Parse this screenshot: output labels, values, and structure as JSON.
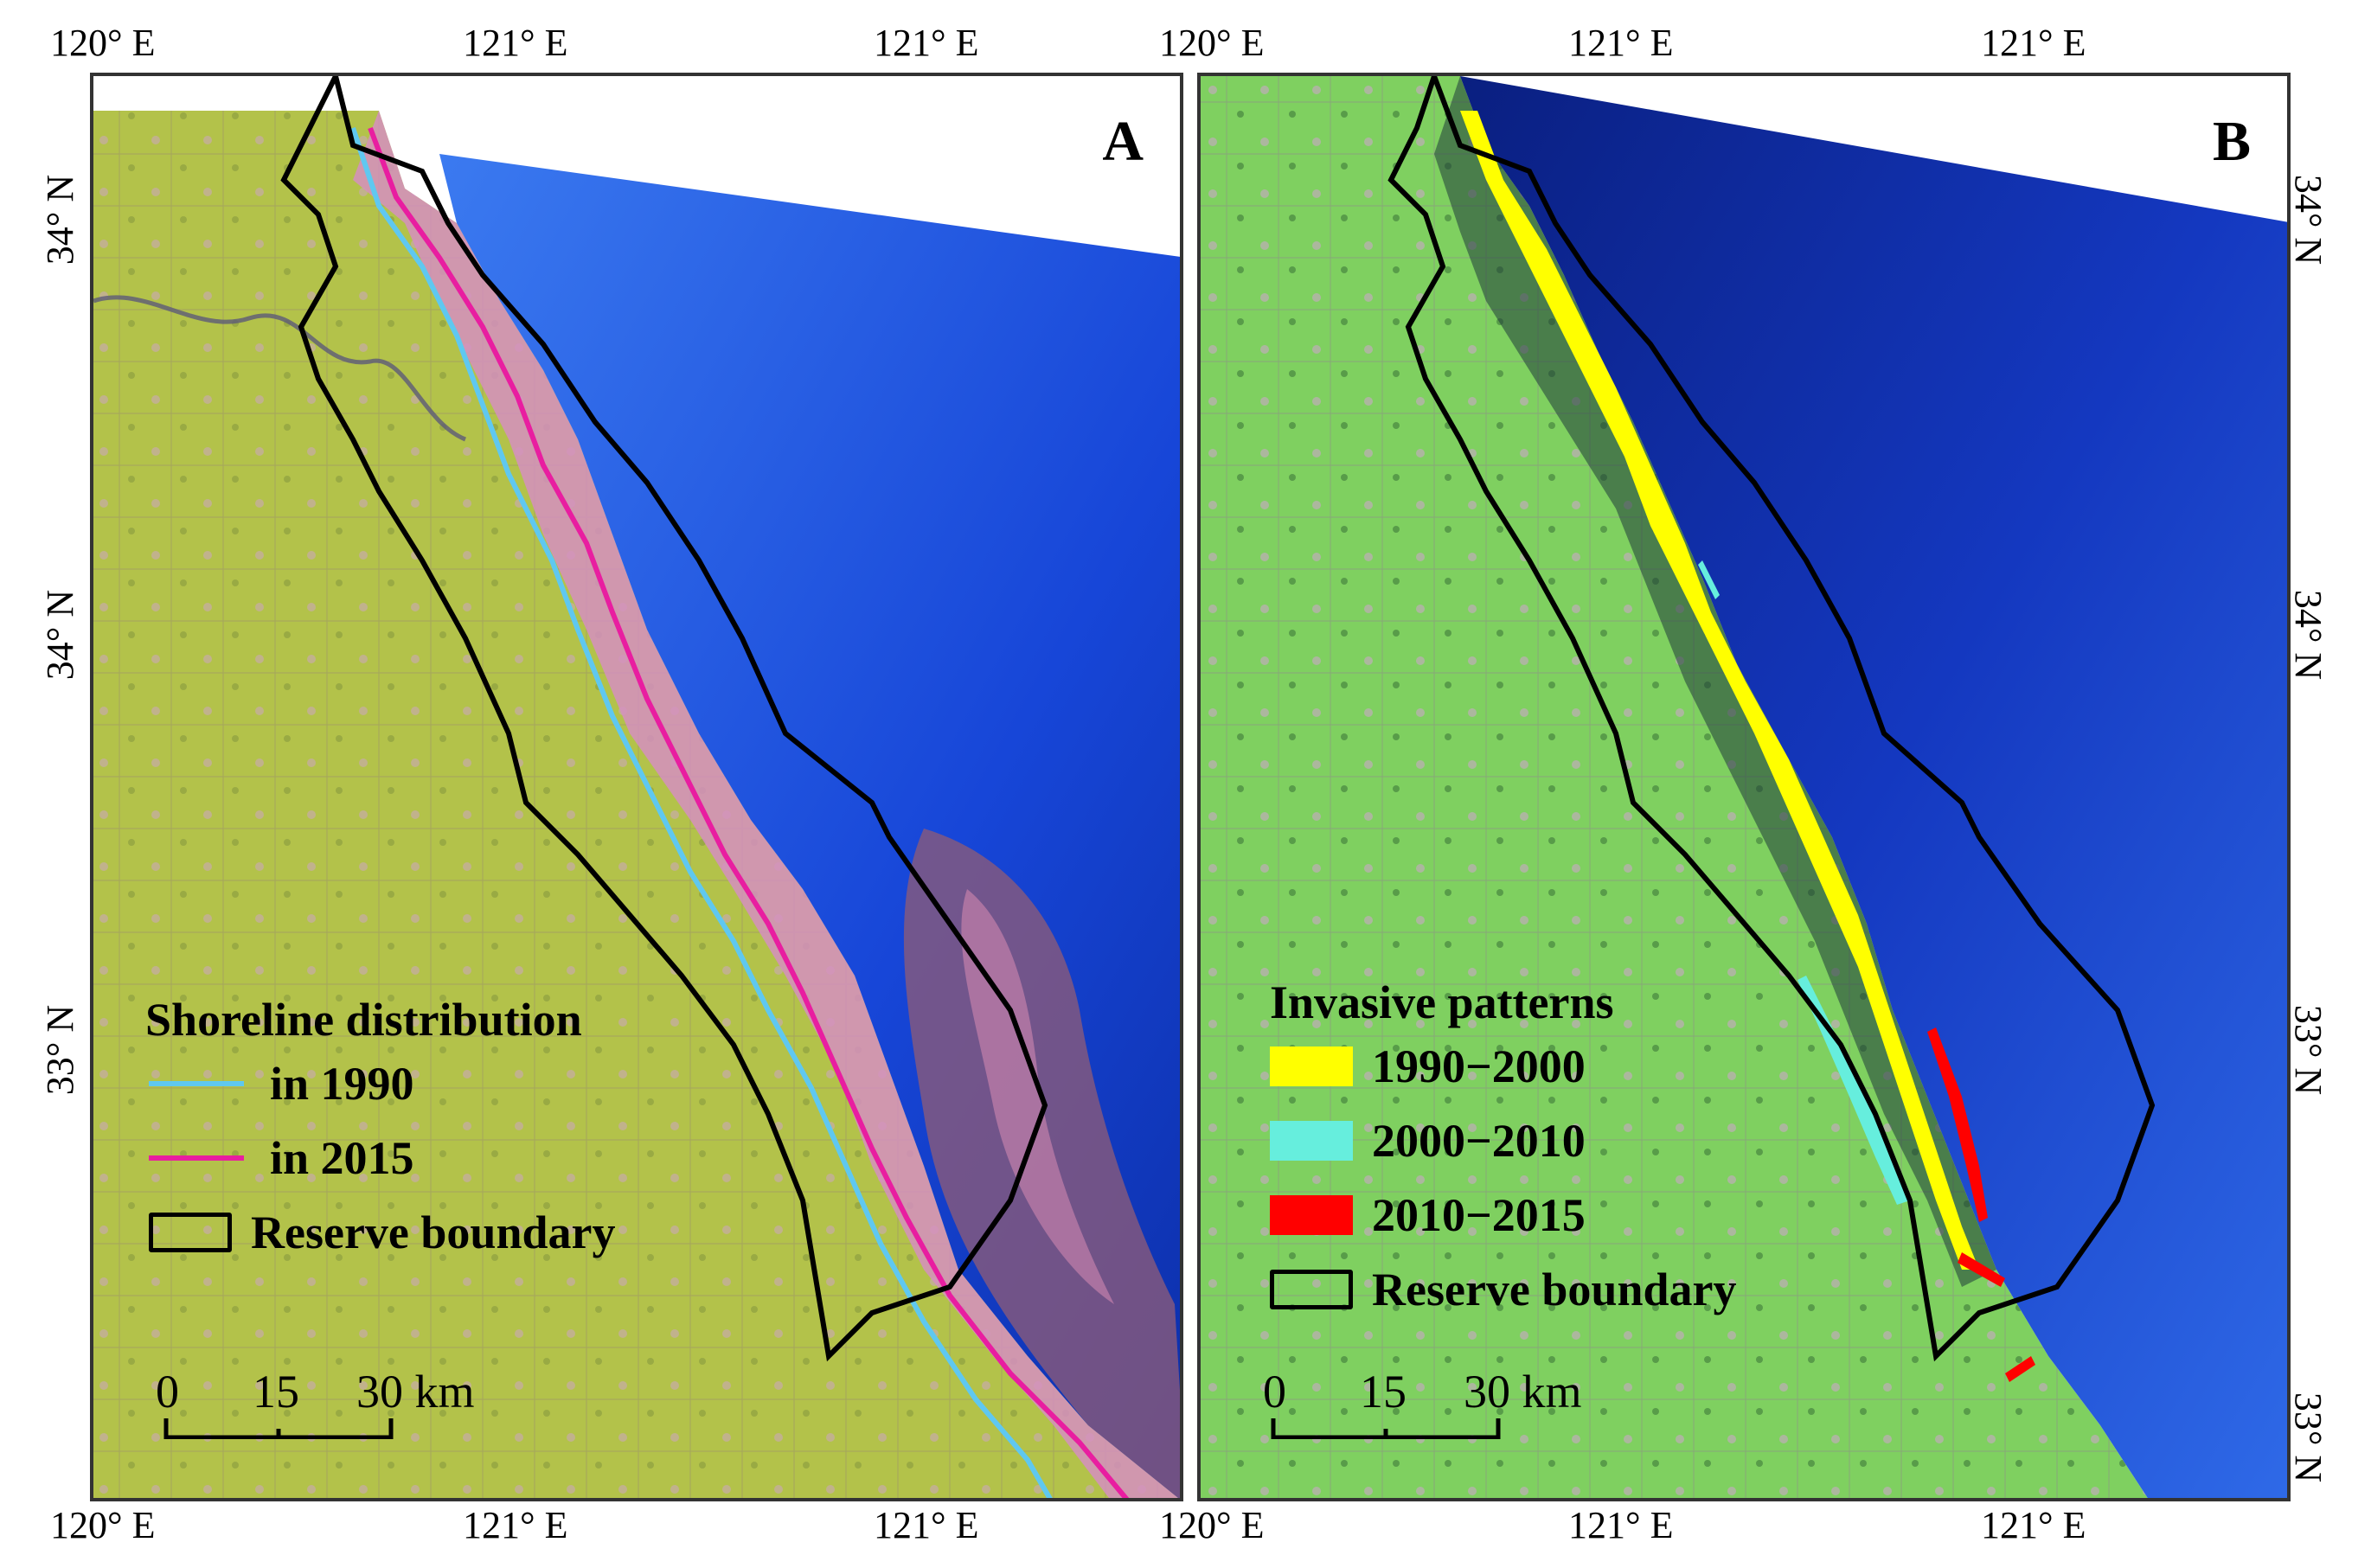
{
  "axes": {
    "top_left": [
      "120° E",
      "121° E",
      "121° E"
    ],
    "top_right": [
      "120° E",
      "121° E",
      "121° E"
    ],
    "bottom_left": [
      "120° E",
      "121° E",
      "121° E"
    ],
    "bottom_right": [
      "120° E",
      "121° E",
      "121° E"
    ],
    "left_lat": [
      "34° N",
      "34° N",
      "33° N"
    ],
    "right_lat": [
      "34° N",
      "34° N",
      "33° N",
      "33° N"
    ]
  },
  "panel_a": {
    "letter": "A",
    "legend_title": "Shoreline distribution",
    "items": [
      {
        "label": "in 1990",
        "color": "#5fc8f0"
      },
      {
        "label": "in 2015",
        "color": "#e81ea0"
      },
      {
        "label": "Reserve boundary",
        "color": "#000000"
      }
    ],
    "scale": {
      "ticks": [
        "0",
        "15",
        "30 km"
      ]
    }
  },
  "panel_b": {
    "letter": "B",
    "legend_title": "Invasive patterns",
    "items": [
      {
        "label": "1990−2000",
        "color": "#ffff00"
      },
      {
        "label": "2000−2010",
        "color": "#66eedd"
      },
      {
        "label": "2010−2015",
        "color": "#ff0000"
      },
      {
        "label": "Reserve boundary",
        "color": "#000000"
      }
    ],
    "scale": {
      "ticks": [
        "0",
        "15",
        "30 km"
      ]
    }
  },
  "colors": {
    "land_a": "#b7c64a",
    "land_b": "#7fd060",
    "sea": "#1a4fe0",
    "sea_deep": "#0a1f80",
    "tidal_flat": "#d99ac8"
  }
}
